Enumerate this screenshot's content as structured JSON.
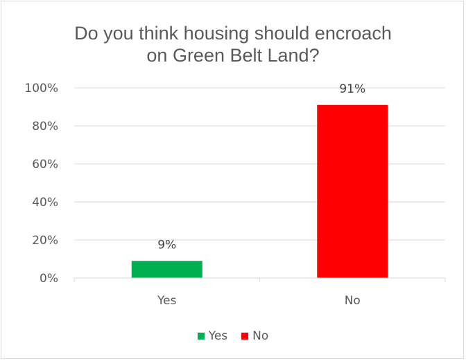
{
  "chart_data": {
    "type": "bar",
    "title_lines": [
      "Do you think housing should encroach",
      "on Green Belt Land?"
    ],
    "categories": [
      "Yes",
      "No"
    ],
    "values": [
      9,
      91
    ],
    "data_labels": [
      "9%",
      "91%"
    ],
    "colors": [
      "#00b050",
      "#ff0000"
    ],
    "ylim": [
      0,
      100
    ],
    "yticks": [
      0,
      20,
      40,
      60,
      80,
      100
    ],
    "ytick_labels": [
      "0%",
      "20%",
      "40%",
      "60%",
      "80%",
      "100%"
    ],
    "grid": true,
    "legend_position": "bottom",
    "legend": [
      {
        "label": "Yes",
        "color": "#00b050"
      },
      {
        "label": "No",
        "color": "#ff0000"
      }
    ]
  }
}
